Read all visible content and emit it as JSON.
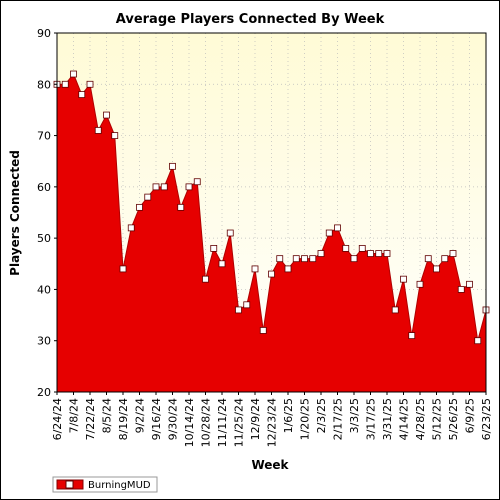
{
  "chart_data": {
    "type": "area",
    "title": "Average Players Connected By Week",
    "xlabel": "Week",
    "ylabel": "Players Connected",
    "ylim": [
      20,
      90
    ],
    "yticks": [
      20,
      30,
      40,
      50,
      60,
      70,
      80,
      90
    ],
    "grid": true,
    "legend_position": "bottom-left",
    "colors": {
      "fill": "#e60000",
      "line": "#b00000",
      "marker": "#ffffff",
      "plot_bg_top": "#fffbd6",
      "plot_bg_bottom": "#ffffff"
    },
    "tick_labels": [
      "6/24/24",
      "7/8/24",
      "7/22/24",
      "8/5/24",
      "8/19/24",
      "9/2/24",
      "9/16/24",
      "9/30/24",
      "10/14/24",
      "10/28/24",
      "11/11/24",
      "11/25/24",
      "12/9/24",
      "12/23/24",
      "1/6/25",
      "1/20/25",
      "2/3/25",
      "2/17/25",
      "3/3/25",
      "3/17/25",
      "3/31/25",
      "4/14/25",
      "4/28/25",
      "5/12/25",
      "5/26/25",
      "6/9/25",
      "6/23/25"
    ],
    "series": [
      {
        "name": "BurningMUD",
        "x": [
          "6/24/24",
          "7/1/24",
          "7/8/24",
          "7/15/24",
          "7/22/24",
          "7/29/24",
          "8/5/24",
          "8/12/24",
          "8/19/24",
          "8/26/24",
          "9/2/24",
          "9/9/24",
          "9/16/24",
          "9/23/24",
          "9/30/24",
          "10/7/24",
          "10/14/24",
          "10/21/24",
          "10/28/24",
          "11/4/24",
          "11/11/24",
          "11/18/24",
          "11/25/24",
          "12/2/24",
          "12/9/24",
          "12/16/24",
          "12/23/24",
          "12/30/24",
          "1/6/25",
          "1/13/25",
          "1/20/25",
          "1/27/25",
          "2/3/25",
          "2/10/25",
          "2/17/25",
          "2/24/25",
          "3/3/25",
          "3/10/25",
          "3/17/25",
          "3/24/25",
          "3/31/25",
          "4/7/25",
          "4/14/25",
          "4/21/25",
          "4/28/25",
          "5/5/25",
          "5/12/25",
          "5/19/25",
          "5/26/25",
          "6/2/25",
          "6/9/25",
          "6/16/25",
          "6/23/25"
        ],
        "values": [
          80,
          80,
          82,
          78,
          80,
          71,
          74,
          70,
          44,
          52,
          56,
          58,
          60,
          60,
          64,
          56,
          60,
          61,
          42,
          48,
          45,
          51,
          36,
          37,
          44,
          32,
          43,
          46,
          44,
          46,
          46,
          46,
          47,
          51,
          52,
          48,
          46,
          48,
          47,
          47,
          47,
          36,
          42,
          31,
          41,
          46,
          44,
          46,
          47,
          40,
          41,
          30,
          36
        ]
      }
    ]
  }
}
